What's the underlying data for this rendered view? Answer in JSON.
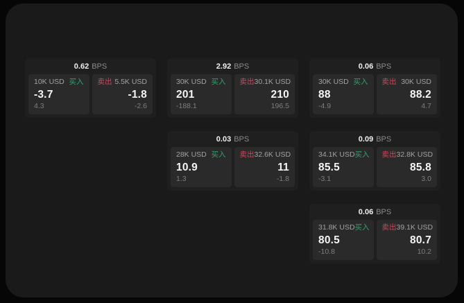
{
  "colors": {
    "buy_green": "#36a06e",
    "sell_red": "#c64a5f",
    "panel_bg": "#2a2a2a",
    "card_bg": "#1f1f1f",
    "stage_bg": "#1a1a1a",
    "page_bg": "#060606"
  },
  "cards": [
    {
      "bps": "0.62",
      "unit": "BPS",
      "buy": {
        "amount": "10K USD",
        "label": "买入",
        "value": "-3.7",
        "delta": "4.3"
      },
      "sell": {
        "label": "卖出",
        "amount": "5.5K USD",
        "value": "-1.8",
        "delta": "-2.6"
      }
    },
    {
      "bps": "2.92",
      "unit": "BPS",
      "buy": {
        "amount": "30K USD",
        "label": "买入",
        "value": "201",
        "delta": "-188.1"
      },
      "sell": {
        "label": "卖出",
        "amount": "30.1K USD",
        "value": "210",
        "delta": "196.5"
      }
    },
    {
      "bps": "0.06",
      "unit": "BPS",
      "buy": {
        "amount": "30K USD",
        "label": "买入",
        "value": "88",
        "delta": "-4.9"
      },
      "sell": {
        "label": "卖出",
        "amount": "30K USD",
        "value": "88.2",
        "delta": "4.7"
      }
    },
    {
      "bps": "0.03",
      "unit": "BPS",
      "buy": {
        "amount": "28K USD",
        "label": "买入",
        "value": "10.9",
        "delta": "1.3"
      },
      "sell": {
        "label": "卖出",
        "amount": "32.6K USD",
        "value": "11",
        "delta": "-1.8"
      }
    },
    {
      "bps": "0.09",
      "unit": "BPS",
      "buy": {
        "amount": "34.1K USD",
        "label": "买入",
        "value": "85.5",
        "delta": "-3.1"
      },
      "sell": {
        "label": "卖出",
        "amount": "32.8K USD",
        "value": "85.8",
        "delta": "3.0"
      }
    },
    {
      "bps": "0.06",
      "unit": "BPS",
      "buy": {
        "amount": "31.8K USD",
        "label": "买入",
        "value": "80.5",
        "delta": "-10.8"
      },
      "sell": {
        "label": "卖出",
        "amount": "39.1K USD",
        "value": "80.7",
        "delta": "10.2"
      }
    }
  ]
}
